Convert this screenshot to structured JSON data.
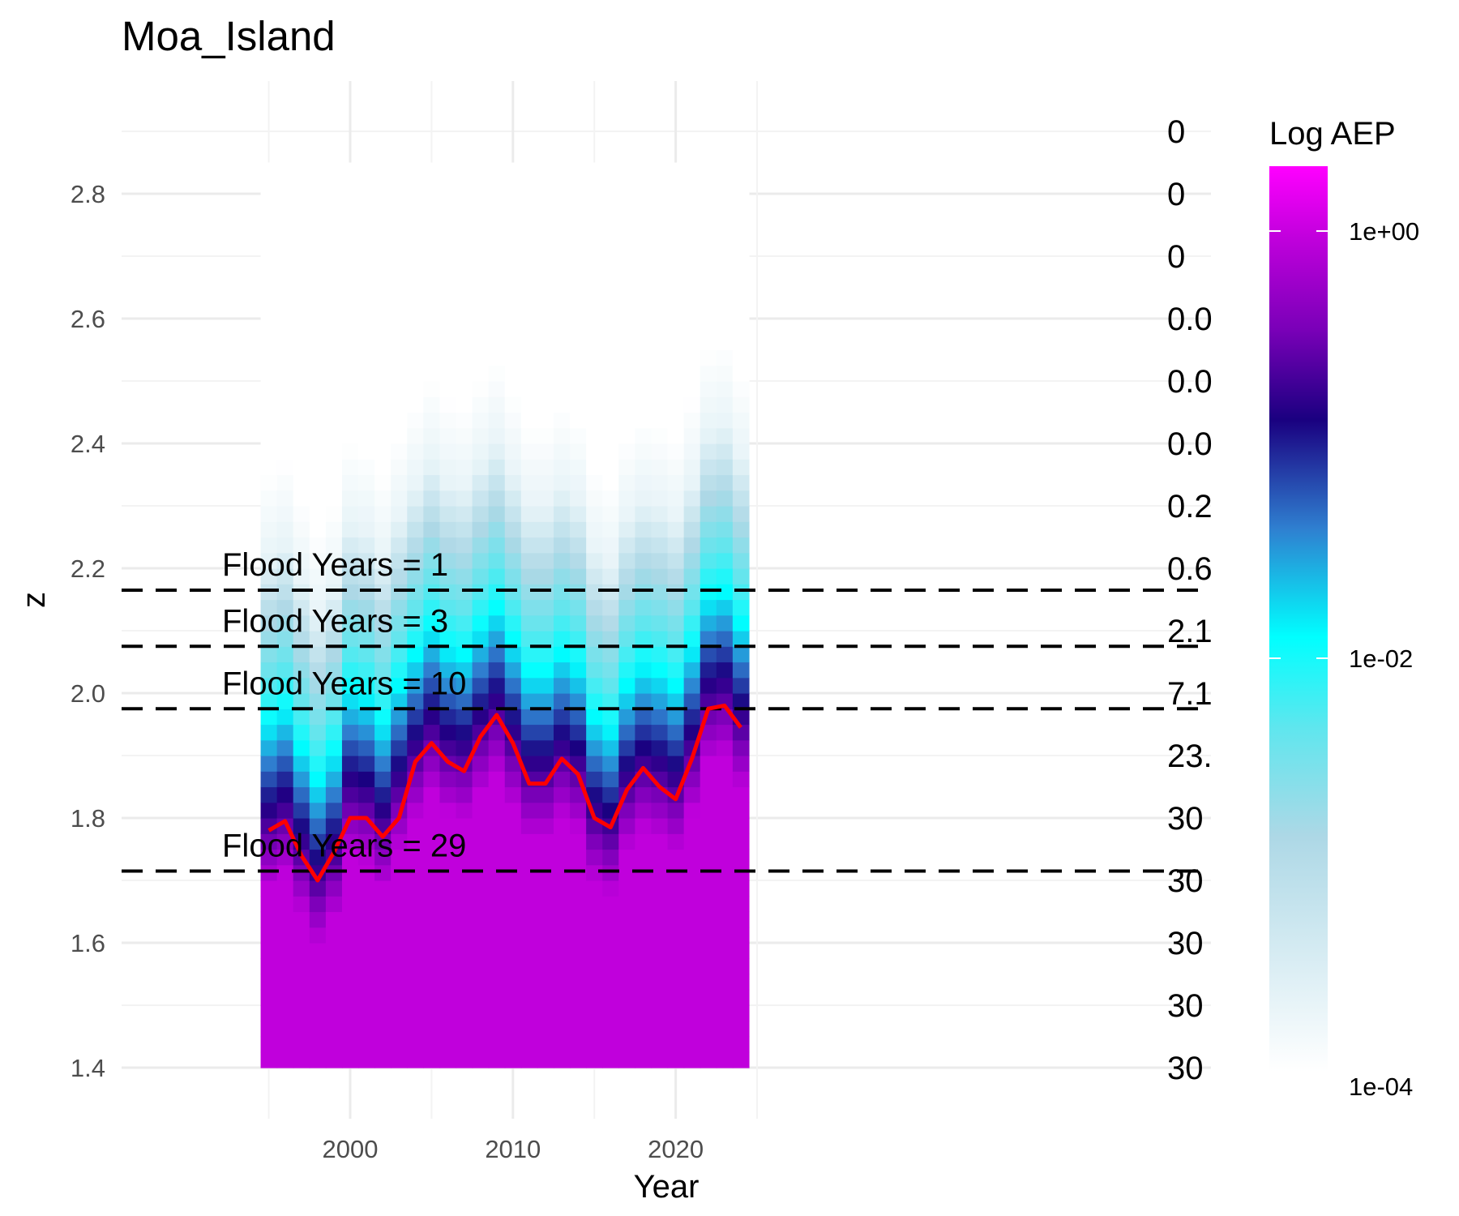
{
  "chart_data": {
    "type": "heatmap",
    "title": "Moa_Island",
    "xlabel": "Year",
    "ylabel": "z",
    "xlim": [
      1994.5,
      2024.5
    ],
    "ylim": [
      1.4,
      2.85
    ],
    "x_ticks": [
      "2000",
      "2010",
      "2020"
    ],
    "y_ticks": [
      "1.4",
      "1.6",
      "1.8",
      "2.0",
      "2.2",
      "2.4",
      "2.6",
      "2.8"
    ],
    "grid": true,
    "legend": {
      "title": "Log AEP",
      "scale": "log",
      "placement": "right",
      "labels": [
        "1e+00",
        "1e-02",
        "1e-04"
      ],
      "colors": [
        "#ff00ff",
        "#c000dc",
        "#7a00b8",
        "#1a0080",
        "#2f7fd0",
        "#00ffff",
        "#5fe6ee",
        "#add8e6",
        "#ffffff"
      ]
    },
    "years": [
      1995,
      1996,
      1997,
      1998,
      1999,
      2000,
      2001,
      2002,
      2003,
      2004,
      2005,
      2006,
      2007,
      2008,
      2009,
      2010,
      2011,
      2012,
      2013,
      2014,
      2015,
      2016,
      2017,
      2018,
      2019,
      2020,
      2021,
      2022,
      2023,
      2024
    ],
    "annual_max_z": [
      1.78,
      1.795,
      1.74,
      1.7,
      1.745,
      1.8,
      1.8,
      1.77,
      1.8,
      1.89,
      1.92,
      1.89,
      1.875,
      1.93,
      1.965,
      1.92,
      1.855,
      1.855,
      1.895,
      1.87,
      1.8,
      1.785,
      1.845,
      1.88,
      1.85,
      1.83,
      1.895,
      1.975,
      1.98,
      1.945
    ],
    "aep_threshold_shift": [
      0.0,
      0.02,
      -0.04,
      -0.09,
      -0.05,
      0.05,
      0.04,
      0.0,
      0.06,
      0.11,
      0.15,
      0.12,
      0.11,
      0.15,
      0.18,
      0.13,
      0.08,
      0.08,
      0.11,
      0.09,
      0.01,
      -0.01,
      0.06,
      0.09,
      0.08,
      0.06,
      0.12,
      0.2,
      0.21,
      0.16
    ],
    "flood_thresholds": [
      {
        "z": 2.165,
        "label": "Flood Years = 1"
      },
      {
        "z": 2.075,
        "label": "Flood Years = 3"
      },
      {
        "z": 1.975,
        "label": "Flood Years = 10"
      },
      {
        "z": 1.715,
        "label": "Flood Years = 29"
      }
    ],
    "right_axis_labels": [
      {
        "z": 2.9,
        "label": "0"
      },
      {
        "z": 2.8,
        "label": "0"
      },
      {
        "z": 2.7,
        "label": "0"
      },
      {
        "z": 2.6,
        "label": "0.0"
      },
      {
        "z": 2.5,
        "label": "0.0"
      },
      {
        "z": 2.4,
        "label": "0.0"
      },
      {
        "z": 2.3,
        "label": "0.2"
      },
      {
        "z": 2.2,
        "label": "0.6"
      },
      {
        "z": 2.1,
        "label": "2.1"
      },
      {
        "z": 2.0,
        "label": "7.1"
      },
      {
        "z": 1.9,
        "label": "23."
      },
      {
        "z": 1.8,
        "label": "30"
      },
      {
        "z": 1.7,
        "label": "30"
      },
      {
        "z": 1.6,
        "label": "30"
      },
      {
        "z": 1.5,
        "label": "30"
      },
      {
        "z": 1.4,
        "label": "30"
      }
    ],
    "line_color": "#ff0000"
  }
}
